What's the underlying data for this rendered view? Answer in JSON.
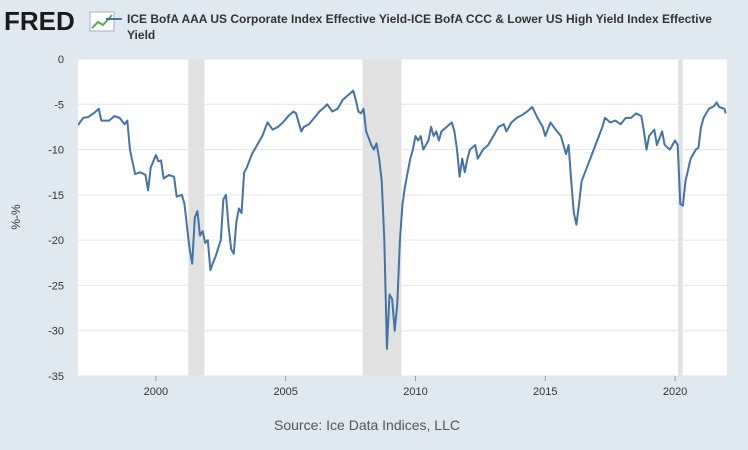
{
  "chart_data": {
    "type": "line",
    "logo": "FRED",
    "y_label": "%-%",
    "source": "Source: Ice Data Indices, LLC",
    "xlim": [
      1997.0,
      2022.0
    ],
    "xticks": [
      2000,
      2005,
      2010,
      2015,
      2020
    ],
    "ylim": [
      -35,
      0
    ],
    "yticks": [
      0,
      -5,
      -10,
      -15,
      -20,
      -25,
      -30,
      -35
    ],
    "grid": true,
    "recession_color": "#e1e1e1",
    "recessions": [
      [
        2001.25,
        2001.87
      ],
      [
        2007.96,
        2009.46
      ],
      [
        2020.12,
        2020.29
      ]
    ],
    "x": [
      1997.0,
      1997.2,
      1997.4,
      1997.6,
      1997.8,
      1997.9,
      1998.2,
      1998.4,
      1998.6,
      1998.8,
      1998.9,
      1999.0,
      1999.2,
      1999.4,
      1999.6,
      1999.7,
      1999.8,
      2000.0,
      2000.1,
      2000.2,
      2000.3,
      2000.5,
      2000.7,
      2000.8,
      2001.0,
      2001.1,
      2001.3,
      2001.4,
      2001.5,
      2001.6,
      2001.7,
      2001.8,
      2001.9,
      2002.0,
      2002.1,
      2002.2,
      2002.3,
      2002.5,
      2002.6,
      2002.7,
      2002.8,
      2002.9,
      2003.0,
      2003.1,
      2003.2,
      2003.3,
      2003.4,
      2003.5,
      2003.7,
      2003.9,
      2004.1,
      2004.3,
      2004.5,
      2004.7,
      2004.9,
      2005.1,
      2005.3,
      2005.4,
      2005.6,
      2005.7,
      2005.9,
      2006.1,
      2006.3,
      2006.5,
      2006.6,
      2006.8,
      2007.0,
      2007.2,
      2007.4,
      2007.6,
      2007.7,
      2007.8,
      2007.9,
      2008.0,
      2008.1,
      2008.3,
      2008.4,
      2008.5,
      2008.6,
      2008.7,
      2008.8,
      2008.9,
      2009.0,
      2009.1,
      2009.2,
      2009.3,
      2009.4,
      2009.5,
      2009.6,
      2009.7,
      2009.8,
      2009.9,
      2010.0,
      2010.1,
      2010.2,
      2010.3,
      2010.5,
      2010.6,
      2010.7,
      2010.8,
      2010.9,
      2011.0,
      2011.2,
      2011.4,
      2011.5,
      2011.6,
      2011.7,
      2011.8,
      2011.9,
      2012.0,
      2012.1,
      2012.3,
      2012.4,
      2012.6,
      2012.8,
      2013.0,
      2013.2,
      2013.4,
      2013.5,
      2013.7,
      2013.9,
      2014.1,
      2014.3,
      2014.5,
      2014.7,
      2014.9,
      2015.0,
      2015.2,
      2015.4,
      2015.6,
      2015.8,
      2015.9,
      2016.0,
      2016.1,
      2016.2,
      2016.3,
      2016.4,
      2016.6,
      2016.8,
      2017.0,
      2017.2,
      2017.3,
      2017.5,
      2017.7,
      2017.9,
      2018.1,
      2018.3,
      2018.5,
      2018.7,
      2018.8,
      2018.9,
      2019.0,
      2019.2,
      2019.3,
      2019.5,
      2019.6,
      2019.8,
      2020.0,
      2020.1,
      2020.2,
      2020.3,
      2020.4,
      2020.6,
      2020.8,
      2020.9,
      2021.0,
      2021.1,
      2021.3,
      2021.5,
      2021.6,
      2021.7,
      2021.9,
      2021.95
    ],
    "series": [
      {
        "name": "ICE BofA AAA US Corporate Index Effective Yield-ICE BofA CCC & Lower US High Yield Index Effective Yield",
        "color": "#4572a7",
        "values": [
          -7.3,
          -6.5,
          -6.4,
          -6.0,
          -5.5,
          -6.8,
          -6.8,
          -6.3,
          -6.5,
          -7.2,
          -6.8,
          -10.0,
          -12.7,
          -12.5,
          -12.8,
          -14.5,
          -12.0,
          -10.6,
          -11.3,
          -11.2,
          -13.2,
          -12.8,
          -13.0,
          -15.2,
          -15.0,
          -16.0,
          -21.0,
          -22.6,
          -17.5,
          -16.8,
          -19.5,
          -19.0,
          -20.3,
          -20.0,
          -23.3,
          -22.5,
          -21.8,
          -20.0,
          -15.5,
          -15.0,
          -18.5,
          -21.0,
          -21.5,
          -18.0,
          -16.5,
          -17.0,
          -12.5,
          -12.0,
          -10.5,
          -9.5,
          -8.5,
          -7.0,
          -7.8,
          -7.5,
          -7.0,
          -6.3,
          -5.8,
          -6.0,
          -8.0,
          -7.5,
          -7.2,
          -6.5,
          -5.8,
          -5.3,
          -5.0,
          -5.8,
          -5.5,
          -4.5,
          -4.0,
          -3.5,
          -4.5,
          -5.8,
          -6.0,
          -5.5,
          -8.0,
          -9.5,
          -10.0,
          -9.3,
          -11.0,
          -13.5,
          -20.0,
          -32.0,
          -26.0,
          -26.5,
          -30.0,
          -27.0,
          -20.0,
          -16.0,
          -14.0,
          -12.5,
          -11.0,
          -10.0,
          -8.5,
          -9.0,
          -8.5,
          -10.0,
          -9.0,
          -7.5,
          -8.5,
          -8.0,
          -9.0,
          -8.0,
          -7.5,
          -7.0,
          -8.0,
          -10.0,
          -13.0,
          -11.0,
          -12.5,
          -11.0,
          -10.0,
          -9.5,
          -11.0,
          -10.0,
          -9.5,
          -8.5,
          -7.5,
          -7.2,
          -8.0,
          -7.0,
          -6.5,
          -6.2,
          -5.8,
          -5.3,
          -6.5,
          -7.5,
          -8.5,
          -7.0,
          -7.8,
          -8.5,
          -10.5,
          -9.5,
          -13.5,
          -17.0,
          -18.3,
          -16.0,
          -13.5,
          -12.0,
          -10.5,
          -9.0,
          -7.5,
          -6.5,
          -7.0,
          -6.8,
          -7.2,
          -6.5,
          -6.5,
          -6.0,
          -6.3,
          -8.0,
          -10.0,
          -8.5,
          -7.8,
          -9.5,
          -8.0,
          -9.5,
          -10.0,
          -9.0,
          -9.5,
          -16.0,
          -16.2,
          -13.5,
          -11.0,
          -10.0,
          -9.8,
          -7.5,
          -6.5,
          -5.5,
          -5.2,
          -4.8,
          -5.3,
          -5.5,
          -6.0
        ]
      }
    ]
  }
}
